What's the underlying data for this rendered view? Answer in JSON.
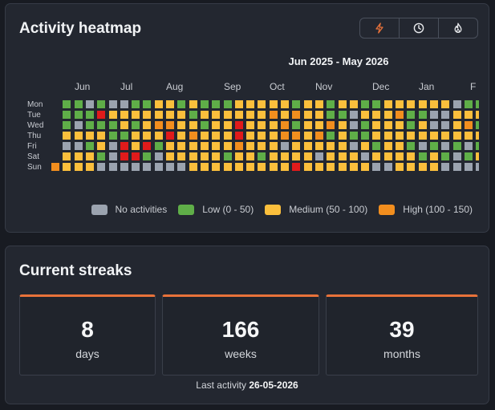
{
  "heatmap": {
    "title": "Activity heatmap",
    "toggle_buttons": [
      {
        "icon": "lightning-icon",
        "active": true
      },
      {
        "icon": "clock-icon",
        "active": false
      },
      {
        "icon": "flame-icon",
        "active": false
      }
    ],
    "range_label": "Jun 2025 - May 2026",
    "months": [
      "Jun",
      "Jul",
      "Aug",
      "Sep",
      "Oct",
      "Nov",
      "Dec",
      "Jan",
      "F"
    ],
    "month_start_week": [
      2,
      6,
      10,
      15,
      19,
      23,
      28,
      32,
      36.5
    ],
    "days": [
      "Mon",
      "Tue",
      "Wed",
      "Thu",
      "Fri",
      "Sat",
      "Sun"
    ],
    "levels": {
      "colors": [
        "#9ba3af",
        "#5fae48",
        "#fbbf3c",
        "#f28e1e",
        "#e01b1b"
      ]
    },
    "grid_rows": [
      "-1101001122121112222212212211222222011212",
      "-1114222222212222223232211022231100222220",
      "-1011121233221224222312232012221200231221",
      "-2222112224232224222332312112222222222122",
      "-0012042412222223222022222021221010101212",
      "-2221044102222212212222022202222121012212",
      "3222000000002222222224222222002222000000"
    ],
    "legend": [
      {
        "label": "No activities",
        "level": 0
      },
      {
        "label": "Low (0 - 50)",
        "level": 1
      },
      {
        "label": "Medium (50 - 100)",
        "level": 2
      },
      {
        "label": "High (100 - 150)",
        "level": 3
      }
    ]
  },
  "streaks": {
    "title": "Current streaks",
    "items": [
      {
        "value": "8",
        "unit": "days"
      },
      {
        "value": "166",
        "unit": "weeks"
      },
      {
        "value": "39",
        "unit": "months"
      }
    ],
    "last_activity_label": "Last activity",
    "last_activity_date": "26-05-2026"
  },
  "colors": {
    "accent": "#e8723a",
    "background": "#181b22",
    "card": "#232730"
  }
}
